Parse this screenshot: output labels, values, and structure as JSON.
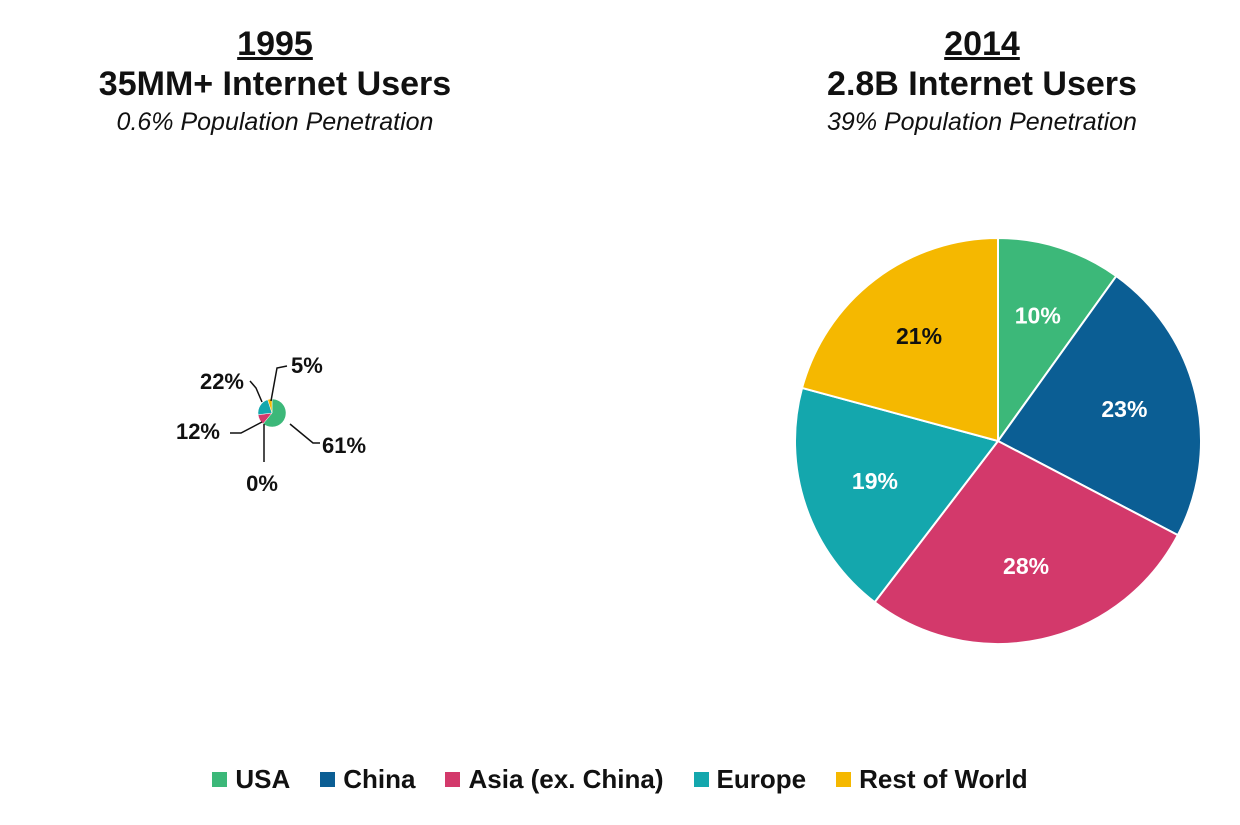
{
  "colors": {
    "USA": "#3cb879",
    "China": "#0b5e94",
    "Asia (ex. China)": "#d3396b",
    "Europe": "#14a7ad",
    "Rest of World": "#f5b800"
  },
  "panels": [
    {
      "year": "1995",
      "users": "35MM+ Internet Users",
      "penetration": "0.6% Population Penetration"
    },
    {
      "year": "2014",
      "users": "2.8B Internet Users",
      "penetration": "39% Population Penetration"
    }
  ],
  "legend": [
    "USA",
    "China",
    "Asia (ex. China)",
    "Europe",
    "Rest of World"
  ],
  "chart_data": [
    {
      "type": "pie",
      "title": "1995",
      "categories": [
        "USA",
        "China",
        "Asia (ex. China)",
        "Europe",
        "Rest of World"
      ],
      "values": [
        61,
        0,
        12,
        22,
        5
      ],
      "labels": [
        "61%",
        "0%",
        "12%",
        "22%",
        "5%"
      ]
    },
    {
      "type": "pie",
      "title": "2014",
      "categories": [
        "USA",
        "China",
        "Asia (ex. China)",
        "Europe",
        "Rest of World"
      ],
      "values": [
        10,
        23,
        28,
        19,
        21
      ],
      "labels": [
        "10%",
        "23%",
        "28%",
        "19%",
        "21%"
      ]
    }
  ]
}
